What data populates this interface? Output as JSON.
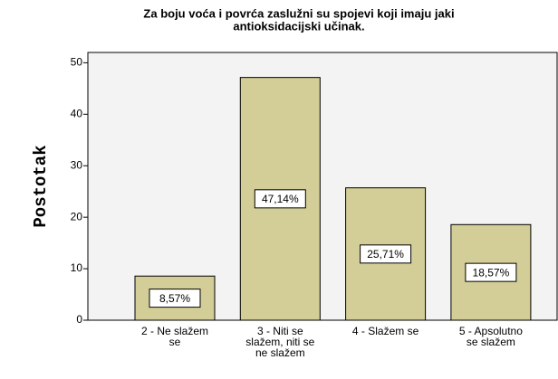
{
  "chart_data": {
    "type": "bar",
    "title": [
      "Za boju voća i povrća zaslužni su spojevi koji imaju jaki",
      "antioksidacijski učinak."
    ],
    "y_label": "Postotak",
    "categories": [
      [
        "2 - Ne slažem",
        "se"
      ],
      [
        "3 - Niti se",
        "slažem, niti se",
        "ne slažem"
      ],
      [
        "4 - Slažem se"
      ],
      [
        "5 - Apsolutno",
        "se slažem"
      ]
    ],
    "values": [
      8.57,
      47.14,
      25.71,
      18.57
    ],
    "value_labels": [
      "8,57%",
      "47,14%",
      "25,71%",
      "18,57%"
    ],
    "color": "#d3ce97",
    "ylim": [
      0,
      52
    ],
    "yticks": [
      0,
      10,
      20,
      30,
      40,
      50
    ],
    "grid": false
  }
}
